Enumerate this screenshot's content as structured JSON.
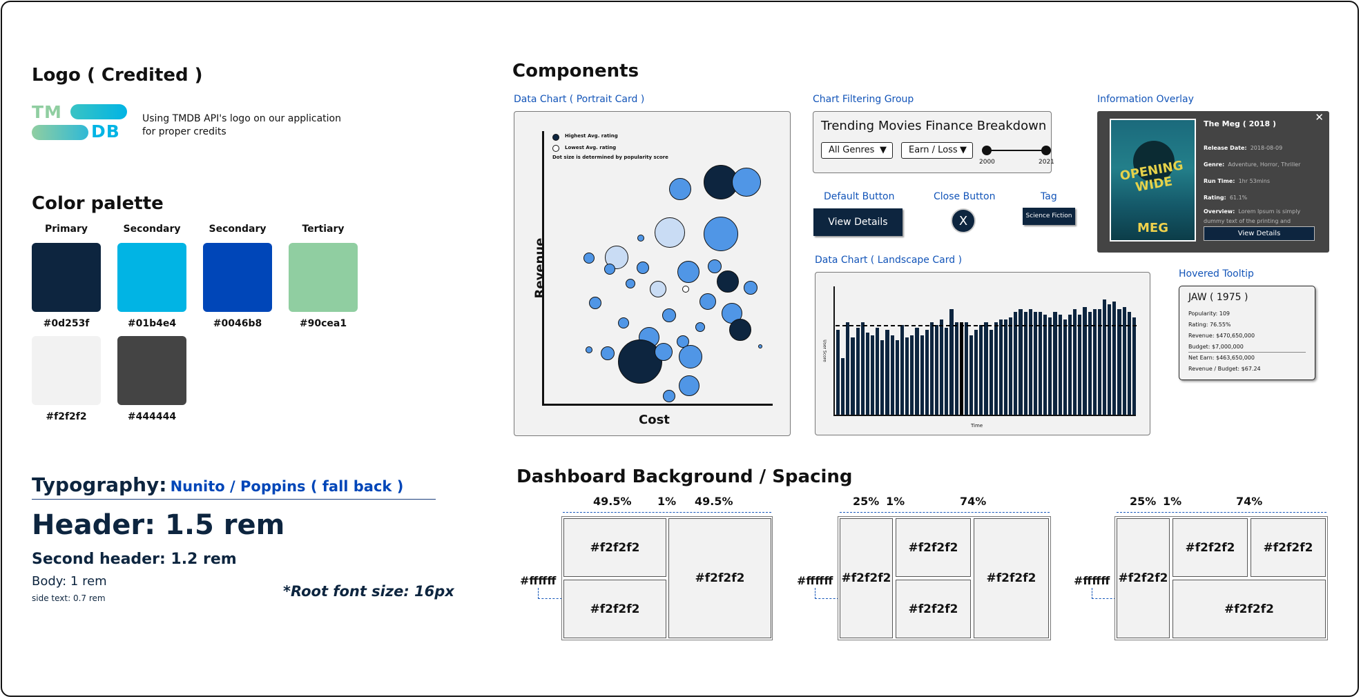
{
  "logo": {
    "title": "Logo ( Credited )",
    "mark_top": "TM",
    "mark_bottom": "DB",
    "description": "Using TMDB API's logo on our application for proper credits"
  },
  "palette": {
    "title": "Color palette",
    "swatches": [
      {
        "label": "Primary",
        "hex": "#0d253f"
      },
      {
        "label": "Secondary",
        "hex": "#01b4e4"
      },
      {
        "label": "Secondary",
        "hex": "#0046b8"
      },
      {
        "label": "Tertiary",
        "hex": "#90cea1"
      },
      {
        "label": "",
        "hex": "#f2f2f2"
      },
      {
        "label": "",
        "hex": "#444444"
      }
    ]
  },
  "typography": {
    "title": "Typography:",
    "fonts": "Nunito / Poppins ( fall back )",
    "header": "Header: 1.5 rem",
    "second_header": "Second header: 1.2 rem",
    "body": "Body: 1 rem",
    "side": "side text: 0.7 rem",
    "root": "*Root font size: 16px"
  },
  "components": {
    "title": "Components",
    "portrait_label": "Data Chart ( Portrait Card )",
    "filter_label": "Chart Filtering Group",
    "overlay_label": "Information Overlay",
    "landscape_label": "Data Chart ( Landscape Card )",
    "tooltip_label": "Hovered Tooltip",
    "default_button_label": "Default Button",
    "close_button_label": "Close Button",
    "tag_label": "Tag",
    "default_button_text": "View Details",
    "close_button_text": "X",
    "tag_text": "Science Fiction"
  },
  "portrait_chart": {
    "legend_high": "Highest Avg. rating",
    "legend_low": "Lowest Avg. rating",
    "legend_note": "Dot size is determined by popularity score",
    "xlabel": "Cost",
    "ylabel": "Revenue"
  },
  "filter": {
    "title": "Trending Movies Finance Breakdown",
    "genre": "All Genres",
    "metric": "Earn / Loss",
    "year_start": "2000",
    "year_end": "2021"
  },
  "overlay": {
    "title": "The Meg ( 2018 )",
    "poster_top": "OPENING WIDE",
    "poster_bottom": "MEG",
    "release_key": "Release Date:",
    "release": "2018-08-09",
    "genre_key": "Genre:",
    "genre": "Adventure, Horror, Thriller",
    "runtime_key": "Run Time:",
    "runtime": "1hr 53mins",
    "rating_key": "Rating:",
    "rating": "61.1%",
    "overview_key": "Overview:",
    "overview": "Lorem Ipsum is simply dummy text of the printing and typesetting industry. Lorem Ipsum...",
    "button": "View Details",
    "close": "✕"
  },
  "landscape_chart": {
    "ylabel": "User Score",
    "xlabel": "Time"
  },
  "chart_data": {
    "type": "bar",
    "title": "",
    "xlabel": "Time",
    "ylabel": "User Score",
    "ylim": [
      0,
      100
    ],
    "reference_line": 70,
    "values": [
      66,
      44,
      72,
      60,
      68,
      72,
      64,
      62,
      68,
      58,
      66,
      62,
      58,
      70,
      60,
      62,
      68,
      62,
      66,
      72,
      70,
      74,
      68,
      82,
      72,
      72,
      72,
      62,
      66,
      70,
      72,
      66,
      72,
      74,
      74,
      76,
      80,
      82,
      80,
      82,
      80,
      80,
      78,
      76,
      80,
      78,
      74,
      78,
      82,
      78,
      84,
      80,
      82,
      82,
      90,
      86,
      88,
      82,
      84,
      80,
      76
    ],
    "highlight_index": 25
  },
  "tooltip": {
    "title": "JAW ( 1975 )",
    "popularity": "Popularity: 109",
    "rating": "Rating: 76.55%",
    "revenue": "Revenue: $470,650,000",
    "budget": "Budget: $7,000,000",
    "net": "Net Earn: $463,650,000",
    "ratio": "Revenue / Budget: $67.24"
  },
  "dashboard": {
    "title": "Dashboard Background / Spacing",
    "white": "#ffffff",
    "cell": "#f2f2f2",
    "layout1": {
      "a": "49.5%",
      "b": "1%",
      "c": "49.5%"
    },
    "layout2": {
      "a": "25%",
      "b": "1%",
      "c": "74%"
    },
    "layout3": {
      "a": "25%",
      "b": "1%",
      "c": "74%"
    }
  }
}
